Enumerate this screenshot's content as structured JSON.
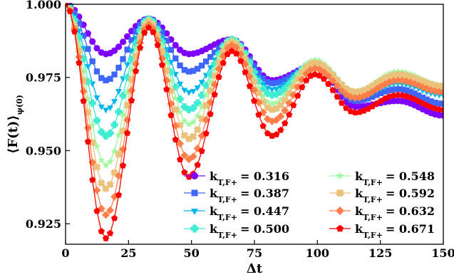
{
  "chart_data": {
    "type": "line",
    "title": "",
    "xlabel": "Δt",
    "ylabel": "⟨F(t)⟩",
    "ylabel_sub": "ψ(0)",
    "xlim": [
      0,
      150
    ],
    "ylim": [
      0.918,
      1.0
    ],
    "xticks": [
      0,
      25,
      50,
      75,
      100,
      125,
      150
    ],
    "yticks": [
      0.925,
      0.95,
      0.975,
      1.0
    ],
    "ytick_labels": [
      "0.925",
      "0.950",
      "0.975",
      "1.000"
    ],
    "grid": false,
    "legend_position": "lower-right",
    "legend_columns": 2,
    "series": [
      {
        "name": "0.316",
        "label_main": "k",
        "label_sub": "T,F+",
        "label_rest": "= 0.316",
        "color": "#7f00ff",
        "marker": "circle",
        "x": [
          0,
          16,
          33,
          49,
          66,
          82,
          99,
          115,
          132,
          150
        ],
        "y": [
          1.0,
          0.983,
          0.995,
          0.983,
          0.988,
          0.974,
          0.979,
          0.965,
          0.967,
          0.962
        ]
      },
      {
        "name": "0.387",
        "label_main": "k",
        "label_sub": "T,F+",
        "label_rest": "= 0.387",
        "color": "#3f65fa",
        "marker": "square",
        "x": [
          0,
          16,
          33,
          49,
          66,
          82,
          99,
          115,
          132,
          150
        ],
        "y": [
          1.0,
          0.974,
          0.995,
          0.977,
          0.987,
          0.973,
          0.979,
          0.967,
          0.971,
          0.966
        ]
      },
      {
        "name": "0.447",
        "label_main": "k",
        "label_sub": "T,F+",
        "label_rest": "= 0.447",
        "color": "#00b5eb",
        "marker": "triangle-down",
        "x": [
          0,
          16,
          33,
          49,
          66,
          82,
          99,
          115,
          132,
          150
        ],
        "y": [
          1.0,
          0.964,
          0.995,
          0.97,
          0.987,
          0.971,
          0.98,
          0.968,
          0.973,
          0.969
        ]
      },
      {
        "name": "0.500",
        "label_main": "k",
        "label_sub": "T,F+",
        "label_rest": "= 0.500",
        "color": "#40ecd4",
        "marker": "plus",
        "x": [
          0,
          16,
          33,
          49,
          66,
          82,
          99,
          115,
          132,
          150
        ],
        "y": [
          1.0,
          0.955,
          0.995,
          0.964,
          0.988,
          0.969,
          0.98,
          0.969,
          0.976,
          0.971
        ]
      },
      {
        "name": "0.548",
        "label_main": "k",
        "label_sub": "T,F+",
        "label_rest": "= 0.548",
        "color": "#9efa9e",
        "marker": "star",
        "x": [
          0,
          16,
          33,
          49,
          66,
          82,
          99,
          115,
          132,
          150
        ],
        "y": [
          1.0,
          0.945,
          0.995,
          0.959,
          0.988,
          0.966,
          0.981,
          0.97,
          0.977,
          0.972
        ]
      },
      {
        "name": "0.592",
        "label_main": "k",
        "label_sub": "T,F+",
        "label_rest": "= 0.592",
        "color": "#eac27c",
        "marker": "x",
        "x": [
          0,
          16,
          33,
          49,
          66,
          82,
          99,
          115,
          132,
          150
        ],
        "y": [
          1.0,
          0.937,
          0.994,
          0.954,
          0.987,
          0.964,
          0.98,
          0.97,
          0.976,
          0.972
        ]
      },
      {
        "name": "0.632",
        "label_main": "k",
        "label_sub": "T,F+",
        "label_rest": "= 0.632",
        "color": "#ff7e49",
        "marker": "diamond",
        "x": [
          0,
          16,
          33,
          49,
          66,
          82,
          99,
          115,
          132,
          150
        ],
        "y": [
          1.0,
          0.928,
          0.993,
          0.947,
          0.986,
          0.96,
          0.978,
          0.968,
          0.974,
          0.97
        ]
      },
      {
        "name": "0.671",
        "label_main": "k",
        "label_sub": "T,F+",
        "label_rest": "= 0.671",
        "color": "#ff0000",
        "marker": "pentagon",
        "x": [
          0,
          16,
          33,
          49,
          66,
          82,
          99,
          115,
          132,
          150
        ],
        "y": [
          1.0,
          0.92,
          0.992,
          0.941,
          0.984,
          0.955,
          0.976,
          0.963,
          0.969,
          0.964
        ]
      }
    ]
  }
}
